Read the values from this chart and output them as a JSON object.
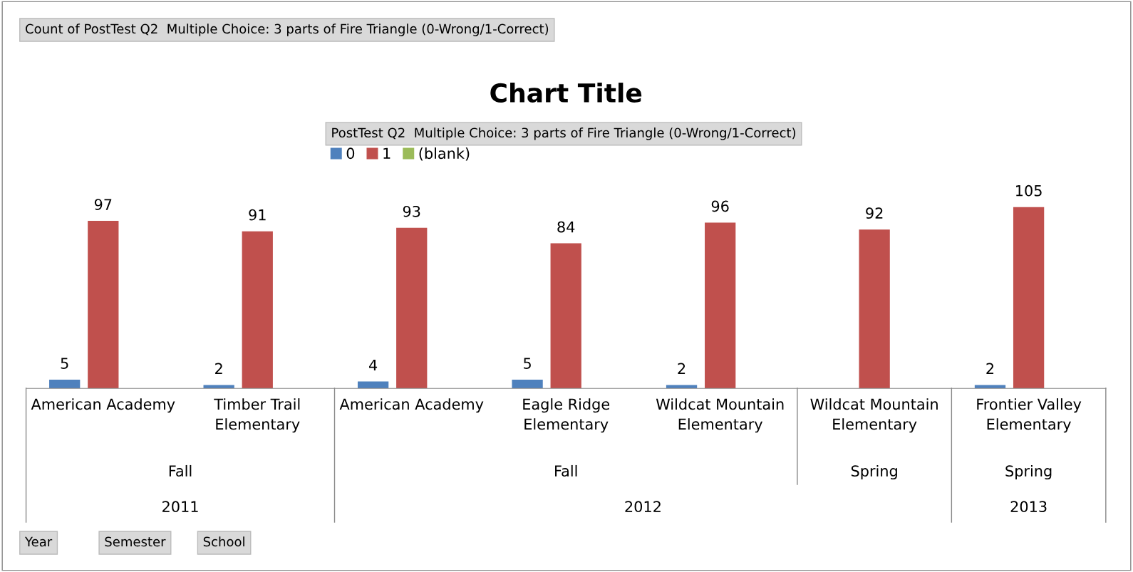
{
  "chart_data": {
    "type": "bar",
    "title": "Chart Title",
    "categories": [
      "American Academy",
      "Timber Trail\nElementary",
      "American Academy",
      "Eagle Ridge\nElementary",
      "Wildcat Mountain\nElementary",
      "Wildcat Mountain\nElementary",
      "Frontier Valley\nElementary"
    ],
    "series": [
      {
        "name": "0",
        "color": "#4f81bd",
        "values": [
          5,
          2,
          4,
          5,
          2,
          null,
          2
        ]
      },
      {
        "name": "1",
        "color": "#c0504d",
        "values": [
          97,
          91,
          93,
          84,
          96,
          92,
          105
        ]
      },
      {
        "name": "(blank)",
        "color": "#9bbb59",
        "values": [
          null,
          null,
          null,
          null,
          null,
          null,
          null
        ]
      }
    ],
    "legend_title": "PostTest Q2  Multiple Choice: 3 parts of Fire Triangle (0-Wrong/1-Correct)",
    "legend": "top",
    "data_labels": true,
    "grid": false,
    "annotations": [
      "Count of PostTest Q2  Multiple Choice: 3 parts of Fire Triangle (0-Wrong/1-Correct)",
      "Year",
      "Semester",
      "School",
      "Fall",
      "Fall",
      "Spring",
      "Spring",
      "2011",
      "2012",
      "2013"
    ]
  }
}
